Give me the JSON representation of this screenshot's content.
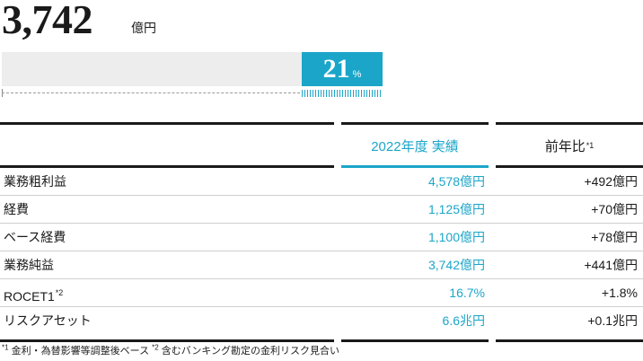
{
  "headline": {
    "value": "3,742",
    "unit": "億円"
  },
  "share_bar": {
    "percent_value": 21,
    "percent_label": "21",
    "percent_unit": "%",
    "accent_color": "#1ba6c9"
  },
  "table": {
    "col_fy": "2022年度 実績",
    "col_yoy": "前年比",
    "col_yoy_note": "*1",
    "rows": [
      {
        "label": "業務粗利益",
        "label_note": "",
        "fy": "4,578億円",
        "yoy": "+492億円"
      },
      {
        "label": "経費",
        "label_note": "",
        "fy": "1,125億円",
        "yoy": "+70億円"
      },
      {
        "label": "ベース経費",
        "label_note": "",
        "fy": "1,100億円",
        "yoy": "+78億円"
      },
      {
        "label": "業務純益",
        "label_note": "",
        "fy": "3,742億円",
        "yoy": "+441億円"
      },
      {
        "label": "ROCET1",
        "label_note": "*2",
        "fy": "16.7%",
        "yoy": "+1.8%"
      },
      {
        "label": "リスクアセット",
        "label_note": "",
        "fy": "6.6兆円",
        "yoy": "+0.1兆円"
      }
    ]
  },
  "footnote": {
    "note1_mark": "*1",
    "note1_text": "金利・為替影響等調整後ベース",
    "note2_mark": "*2",
    "note2_text": "含むバンキング勘定の金利リスク見合い"
  }
}
